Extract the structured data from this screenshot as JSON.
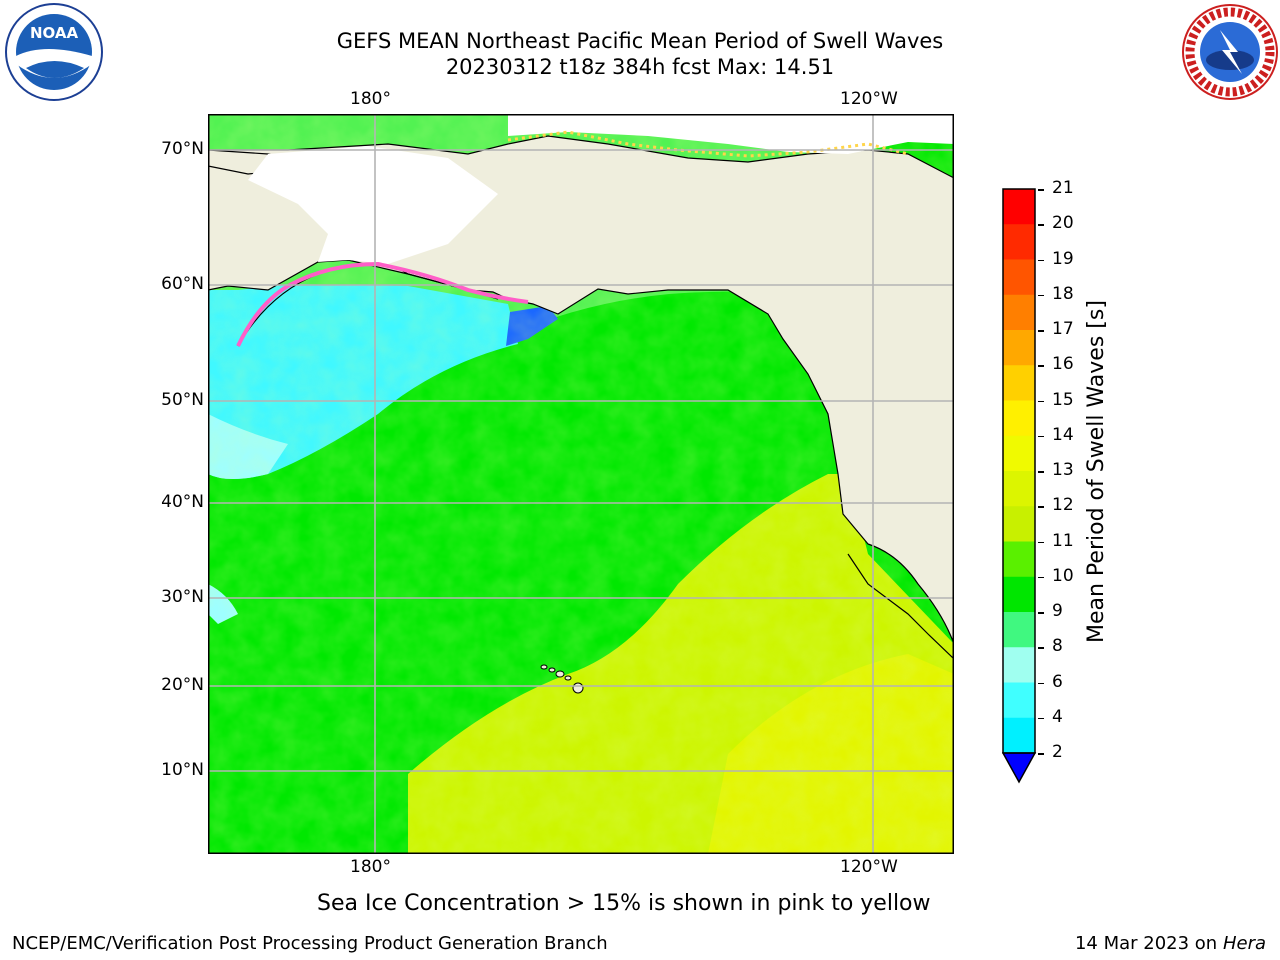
{
  "title": {
    "line1": "GEFS MEAN Northeast Pacific Mean Period of Swell Waves",
    "line2": "20230312 t18z 384h fcst   Max: 14.51"
  },
  "logos": {
    "left": {
      "name": "noaa-logo",
      "text": "NOAA"
    },
    "right": {
      "name": "nws-logo",
      "text": "NATIONAL WEATHER SERVICE"
    }
  },
  "map": {
    "lon_labels_top": [
      "180°",
      "120°W"
    ],
    "lon_labels_bottom": [
      "180°",
      "120°W"
    ],
    "lat_labels": [
      "70°N",
      "60°N",
      "50°N",
      "40°N",
      "30°N",
      "20°N",
      "10°N"
    ],
    "field_colors": {
      "land": "#efeedd",
      "deep_swell_green": "#00e800",
      "mid_green": "#52f252",
      "yellow_green": "#cdf500",
      "yellow": "#e3f500",
      "cyan": "#40f8ff",
      "light_cyan": "#9effff",
      "blue": "#1a68ff",
      "sea_ice": "#ff5ec8"
    }
  },
  "colorbar": {
    "label": "Mean Period of Swell Waves [s]",
    "ticks": [
      "21",
      "20",
      "19",
      "18",
      "17",
      "16",
      "15",
      "14",
      "13",
      "12",
      "11",
      "10",
      "9",
      "8",
      "6",
      "4",
      "2"
    ],
    "colors": [
      "#ff0000",
      "#ff2a00",
      "#ff5500",
      "#ff7f00",
      "#ffa800",
      "#ffd000",
      "#fff000",
      "#f0fa00",
      "#dcf500",
      "#c8f000",
      "#5af000",
      "#00e600",
      "#40f880",
      "#a0fff0",
      "#40ffff",
      "#00f0ff",
      "#0078ff"
    ],
    "extend_color": "#0000ff"
  },
  "caption": "Sea Ice Concentration > 15% is shown in pink to yellow",
  "footer": {
    "left": "NCEP/EMC/Verification Post Processing Product Generation Branch",
    "right_date": "14 Mar 2023 on",
    "right_host": "Hera"
  }
}
